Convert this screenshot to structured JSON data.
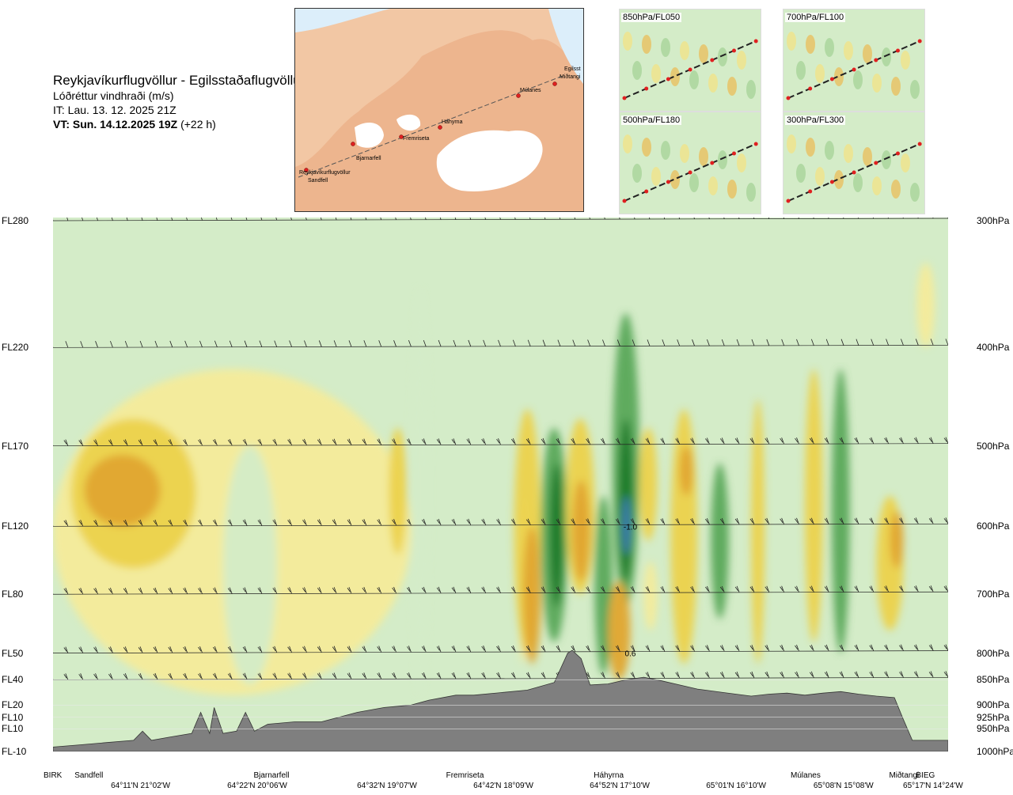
{
  "header": {
    "route": "Reykjavíkurflugvöllur - Egilsstaðaflugvöllur",
    "parameter": "Lóðréttur vindhraði (m/s)",
    "issue_time": "IT: Lau. 13. 12. 2025 21Z",
    "valid_time": "VT: Sun. 14.12.2025 19Z",
    "lead_time": "(+22 h)"
  },
  "map": {
    "waypoints": [
      "Reykjavíkurflugvöllur",
      "Sandfell",
      "Bjarnarfell",
      "Fremriseta",
      "Háhyrna",
      "Múlanes",
      "Miðtangi",
      "Egilsst"
    ]
  },
  "thumbnails": [
    {
      "label": "850hPa/FL050"
    },
    {
      "label": "700hPa/FL100"
    },
    {
      "label": "500hPa/FL180"
    },
    {
      "label": "300hPa/FL300"
    }
  ],
  "colors": {
    "sky_green": "#d4ecc8",
    "up_yellow": "#f4eb9a",
    "up_orange": "#e0a530",
    "down_green": "#5aa85a",
    "down_dark": "#1c7a2a",
    "core_blue": "#3d7ab8",
    "terrain": "#7f7f7f"
  },
  "chart_data": {
    "type": "heatmap",
    "title": "Lóðréttur vindhraði (m/s)",
    "flight_levels": [
      {
        "fl": "FL280",
        "pressure": "300hPa",
        "hpa": 300
      },
      {
        "fl": "FL220",
        "pressure": "400hPa",
        "hpa": 400
      },
      {
        "fl": "FL170",
        "pressure": "500hPa",
        "hpa": 500
      },
      {
        "fl": "FL120",
        "pressure": "600hPa",
        "hpa": 600
      },
      {
        "fl": "FL80",
        "pressure": "700hPa",
        "hpa": 700
      },
      {
        "fl": "FL50",
        "pressure": "800hPa",
        "hpa": 800
      },
      {
        "fl": "FL40",
        "pressure": "850hPa",
        "hpa": 850
      },
      {
        "fl": "FL20",
        "pressure": "900hPa",
        "hpa": 900
      },
      {
        "fl": "FL10",
        "pressure": "925hPa",
        "hpa": 925
      },
      {
        "fl": "FL10",
        "pressure": "950hPa",
        "hpa": 950
      },
      {
        "fl": "FL-10",
        "pressure": "1000hPa",
        "hpa": 1000
      }
    ],
    "wind_barb_levels_hpa": [
      300,
      400,
      500,
      600,
      700,
      800,
      850
    ],
    "waypoints": [
      {
        "name": "BIRK",
        "pos": 0.0
      },
      {
        "name": "Sandfell",
        "pos": 0.04
      },
      {
        "name": "Bjarnarfell",
        "pos": 0.24
      },
      {
        "name": "Fremriseta",
        "pos": 0.455
      },
      {
        "name": "Háhyrna",
        "pos": 0.62
      },
      {
        "name": "Múlanes",
        "pos": 0.84
      },
      {
        "name": "Miðtangi",
        "pos": 0.95
      },
      {
        "name": "BIEG",
        "pos": 0.98
      }
    ],
    "coordinates": [
      {
        "label": "64°11'N 21°02'W",
        "pos": 0.1
      },
      {
        "label": "64°22'N 20°06'W",
        "pos": 0.23
      },
      {
        "label": "64°32'N 19°07'W",
        "pos": 0.375
      },
      {
        "label": "64°42'N 18°09'W",
        "pos": 0.505
      },
      {
        "label": "64°52'N 17°10'W",
        "pos": 0.635
      },
      {
        "label": "65°01'N 16°10'W",
        "pos": 0.765
      },
      {
        "label": "65°08'N 15°08'W",
        "pos": 0.885
      },
      {
        "label": "65°17'N 14°24'W",
        "pos": 0.985
      }
    ],
    "contour_labels": [
      {
        "text": "-1.0",
        "pos": 0.645,
        "hpa": 600
      },
      {
        "text": "0.6",
        "pos": 0.645,
        "hpa": 800
      }
    ],
    "terrain_hpa": [
      [
        0.0,
        990
      ],
      [
        0.03,
        985
      ],
      [
        0.06,
        980
      ],
      [
        0.09,
        975
      ],
      [
        0.1,
        955
      ],
      [
        0.11,
        975
      ],
      [
        0.13,
        968
      ],
      [
        0.155,
        960
      ],
      [
        0.165,
        915
      ],
      [
        0.175,
        960
      ],
      [
        0.18,
        905
      ],
      [
        0.19,
        960
      ],
      [
        0.205,
        955
      ],
      [
        0.215,
        915
      ],
      [
        0.225,
        955
      ],
      [
        0.24,
        940
      ],
      [
        0.27,
        935
      ],
      [
        0.3,
        935
      ],
      [
        0.34,
        915
      ],
      [
        0.37,
        905
      ],
      [
        0.4,
        900
      ],
      [
        0.42,
        890
      ],
      [
        0.45,
        880
      ],
      [
        0.47,
        880
      ],
      [
        0.5,
        875
      ],
      [
        0.53,
        870
      ],
      [
        0.56,
        855
      ],
      [
        0.575,
        800
      ],
      [
        0.58,
        795
      ],
      [
        0.59,
        810
      ],
      [
        0.6,
        860
      ],
      [
        0.62,
        858
      ],
      [
        0.64,
        850
      ],
      [
        0.66,
        845
      ],
      [
        0.68,
        852
      ],
      [
        0.7,
        860
      ],
      [
        0.72,
        868
      ],
      [
        0.75,
        875
      ],
      [
        0.78,
        882
      ],
      [
        0.8,
        878
      ],
      [
        0.82,
        876
      ],
      [
        0.84,
        880
      ],
      [
        0.86,
        876
      ],
      [
        0.88,
        873
      ],
      [
        0.9,
        878
      ],
      [
        0.92,
        882
      ],
      [
        0.94,
        885
      ],
      [
        0.95,
        930
      ],
      [
        0.96,
        975
      ],
      [
        0.98,
        975
      ],
      [
        1.0,
        975
      ]
    ]
  }
}
